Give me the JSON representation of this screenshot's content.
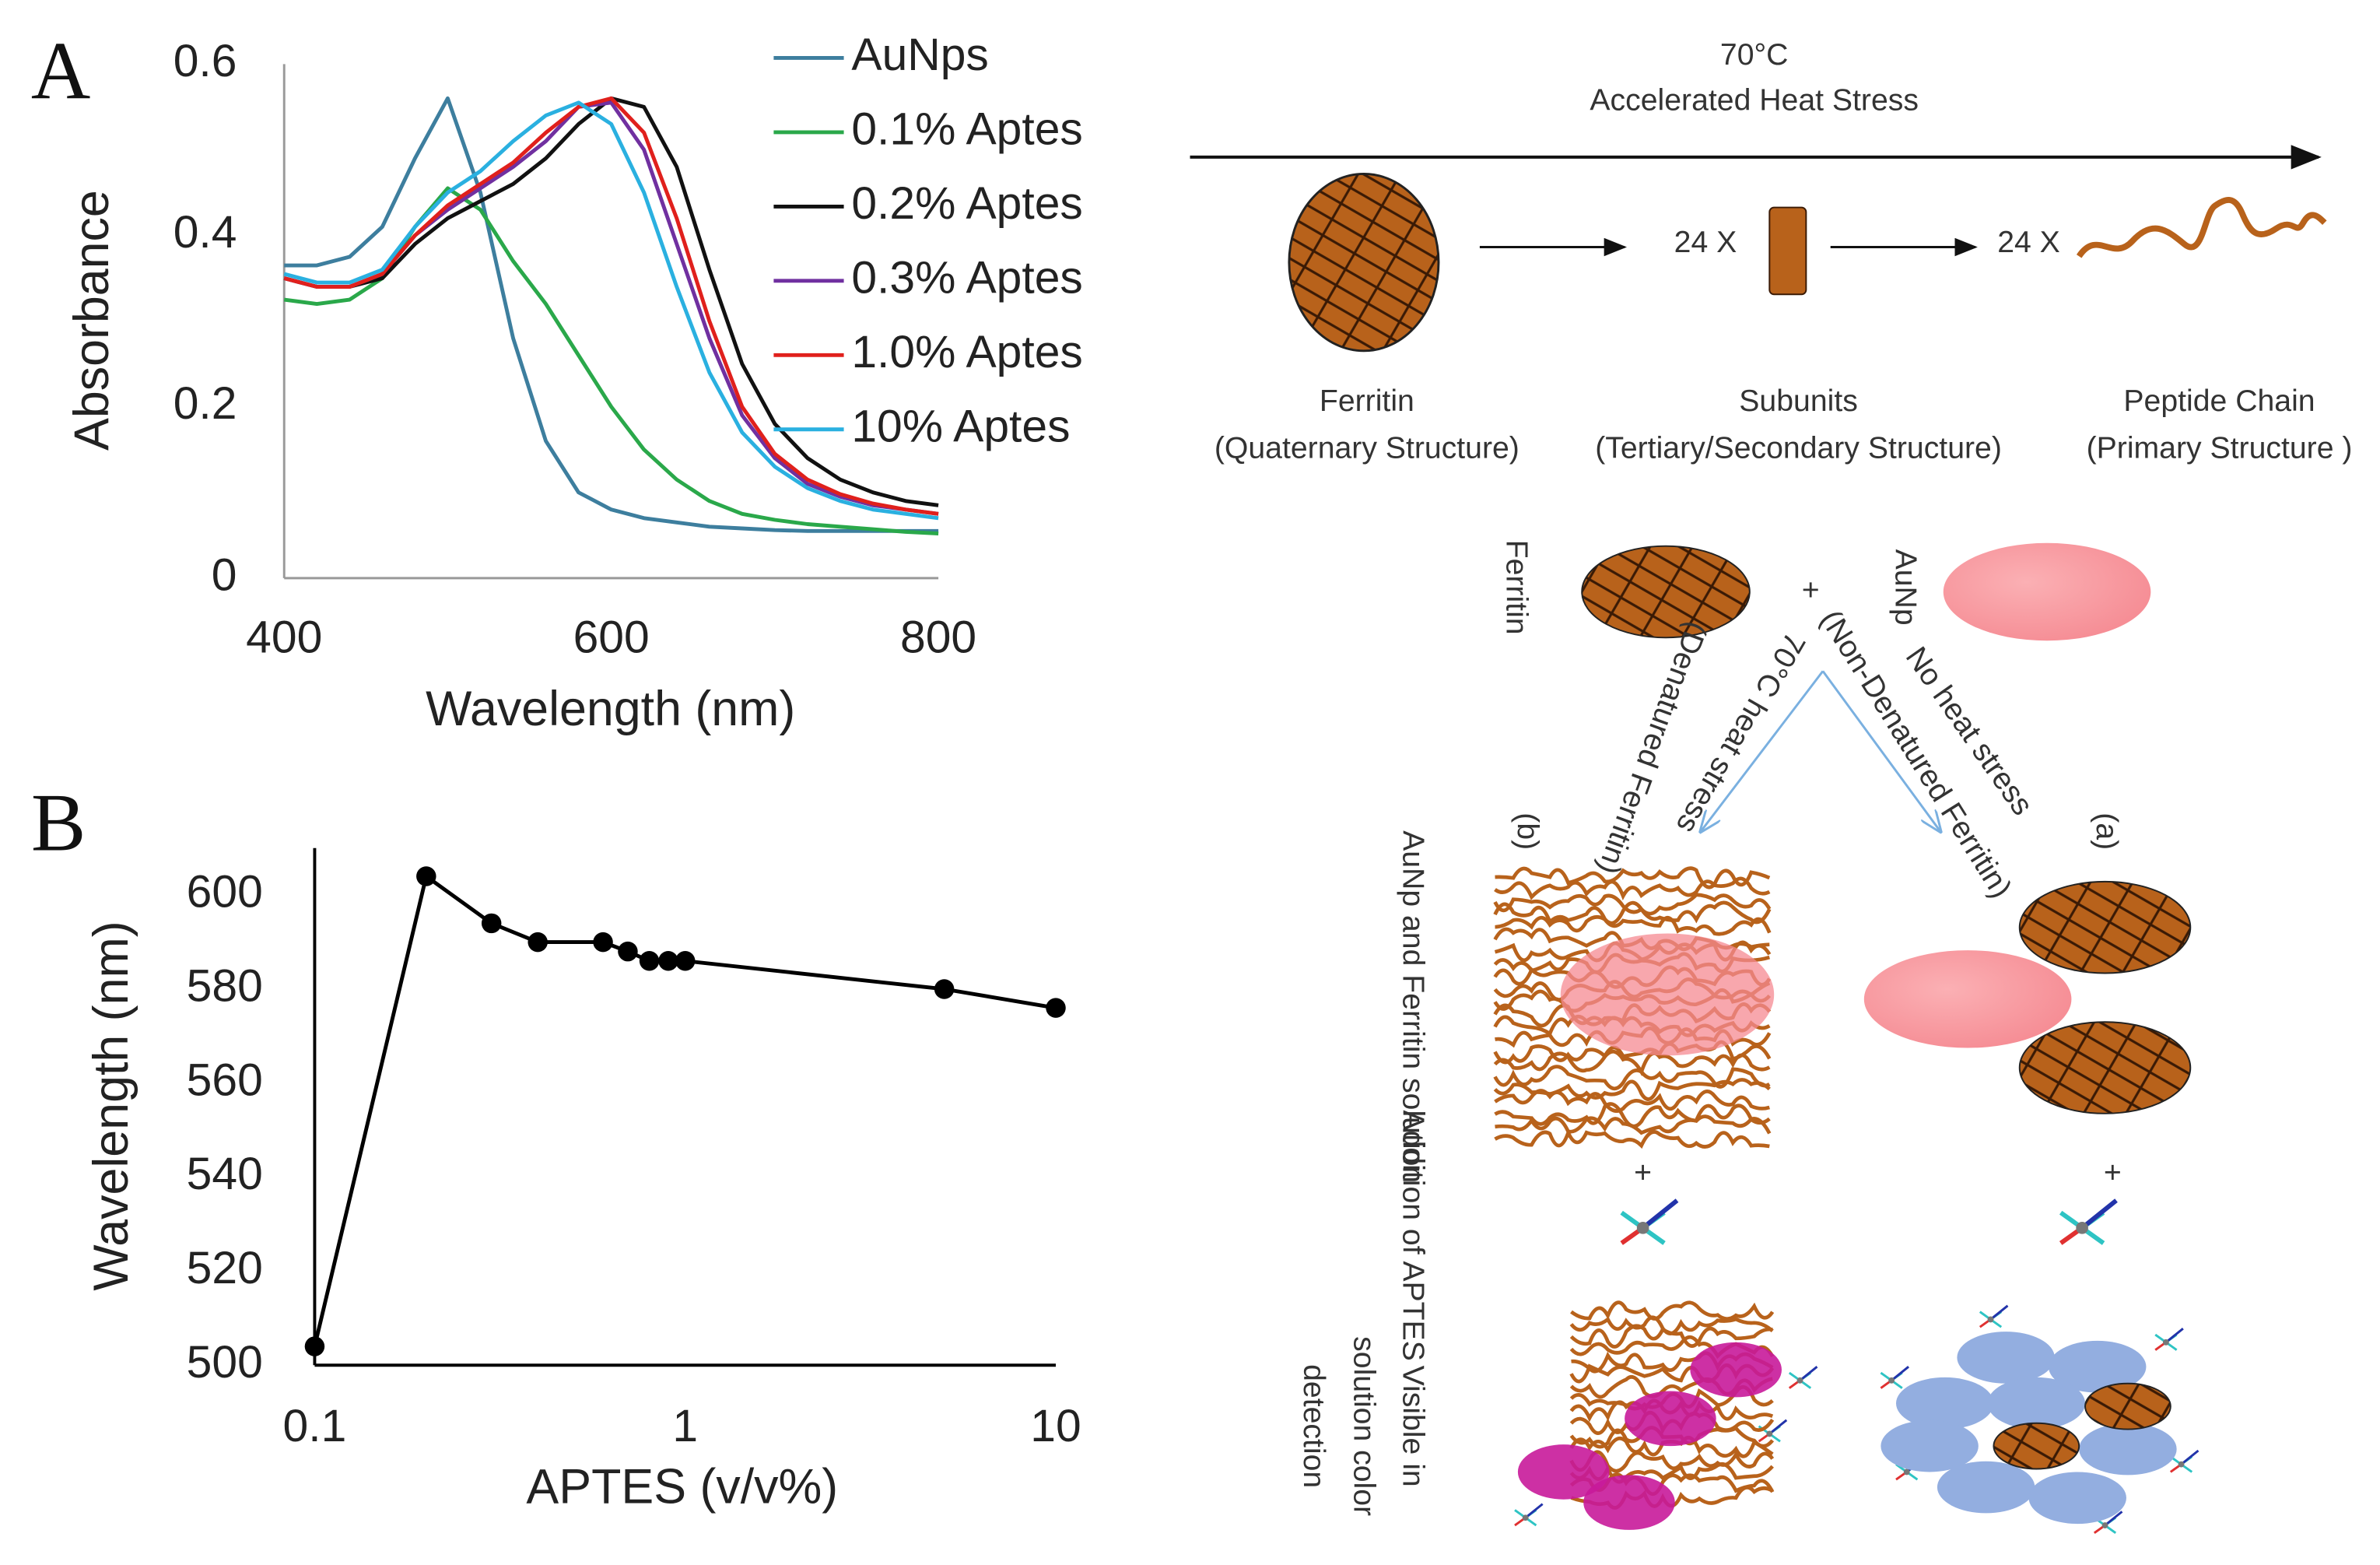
{
  "chart_data": [
    {
      "label": "A",
      "type": "line",
      "xlabel": "Wavelength (nm)",
      "ylabel": "Absorbance",
      "x": [
        400,
        420,
        440,
        460,
        480,
        500,
        520,
        540,
        560,
        580,
        600,
        620,
        640,
        660,
        680,
        700,
        720,
        740,
        760,
        780,
        800
      ],
      "xlim": [
        400,
        800
      ],
      "xticks": [
        400,
        600,
        800
      ],
      "ylim": [
        0,
        0.6
      ],
      "yticks": [
        0,
        0.2,
        0.4,
        0.6
      ],
      "series": [
        {
          "name": "AuNps",
          "color": "#3d7e9e",
          "values": [
            0.365,
            0.365,
            0.375,
            0.41,
            0.49,
            0.56,
            0.45,
            0.28,
            0.16,
            0.1,
            0.08,
            0.07,
            0.065,
            0.06,
            0.058,
            0.056,
            0.055,
            0.055,
            0.055,
            0.055,
            0.055
          ]
        },
        {
          "name": "0.1% Aptes",
          "color": "#2aa84a",
          "values": [
            0.325,
            0.32,
            0.325,
            0.35,
            0.41,
            0.455,
            0.43,
            0.37,
            0.32,
            0.26,
            0.2,
            0.15,
            0.115,
            0.09,
            0.075,
            0.068,
            0.063,
            0.06,
            0.057,
            0.054,
            0.052
          ]
        },
        {
          "name": "0.2% Aptes",
          "color": "#111111",
          "values": [
            0.35,
            0.34,
            0.34,
            0.35,
            0.39,
            0.42,
            0.44,
            0.46,
            0.49,
            0.53,
            0.56,
            0.55,
            0.48,
            0.36,
            0.25,
            0.18,
            0.14,
            0.115,
            0.1,
            0.09,
            0.085
          ]
        },
        {
          "name": "0.3% Aptes",
          "color": "#7030a0",
          "values": [
            0.35,
            0.34,
            0.34,
            0.355,
            0.4,
            0.43,
            0.455,
            0.48,
            0.51,
            0.55,
            0.555,
            0.5,
            0.39,
            0.28,
            0.19,
            0.14,
            0.11,
            0.095,
            0.085,
            0.08,
            0.075
          ]
        },
        {
          "name": "1.0% Aptes",
          "color": "#e0201c",
          "values": [
            0.35,
            0.34,
            0.34,
            0.355,
            0.4,
            0.435,
            0.46,
            0.485,
            0.52,
            0.55,
            0.56,
            0.52,
            0.42,
            0.3,
            0.2,
            0.145,
            0.115,
            0.098,
            0.087,
            0.08,
            0.075
          ]
        },
        {
          "name": "10% Aptes",
          "color": "#2ab0e0",
          "values": [
            0.355,
            0.345,
            0.345,
            0.36,
            0.41,
            0.45,
            0.475,
            0.51,
            0.54,
            0.555,
            0.53,
            0.45,
            0.34,
            0.24,
            0.17,
            0.13,
            0.105,
            0.09,
            0.08,
            0.075,
            0.07
          ]
        }
      ]
    },
    {
      "label": "B",
      "type": "line",
      "markers": true,
      "log_x": true,
      "color": "#000000",
      "xlabel": "APTES (v/v%)",
      "ylabel": "Wavelength (nm)",
      "x": [
        0.1,
        0.2,
        0.3,
        0.4,
        0.6,
        0.7,
        0.8,
        0.9,
        1,
        5,
        10
      ],
      "values": [
        504,
        604,
        594,
        590,
        590,
        588,
        586,
        586,
        586,
        580,
        576
      ],
      "xlim": [
        0.1,
        10
      ],
      "xticks": [
        0.1,
        1,
        10
      ],
      "ylim": [
        500,
        610
      ],
      "yticks": [
        500,
        520,
        540,
        560,
        580,
        600
      ]
    }
  ],
  "diagram": {
    "heat": {
      "temperature": "70°C",
      "label": "Accelerated Heat Stress"
    },
    "multiplier": [
      "24 X",
      "24 X"
    ],
    "stages": [
      {
        "name": "Ferritin",
        "structure": "(Quaternary Structure)"
      },
      {
        "name": "Subunits",
        "structure": "(Tertiary/Secondary Structure)"
      },
      {
        "name": "Peptide Chain",
        "structure": "(Primary Structure )"
      }
    ],
    "scheme": {
      "ferritin": "Ferritin",
      "aunp": "AuNp",
      "plus": [
        "+",
        "+",
        "+"
      ],
      "paths": [
        {
          "condition": "70°C heat stress",
          "state": "(Denatured Ferritin)",
          "tag": "(b)"
        },
        {
          "condition": "No heat stress",
          "state": "(Non-Denatured Ferritin)",
          "tag": "(a)"
        }
      ],
      "steps": [
        "AuNp and Ferritin solution",
        "Addition of APTES"
      ],
      "detection": [
        "Visible in",
        "solution color",
        "detection"
      ]
    }
  }
}
